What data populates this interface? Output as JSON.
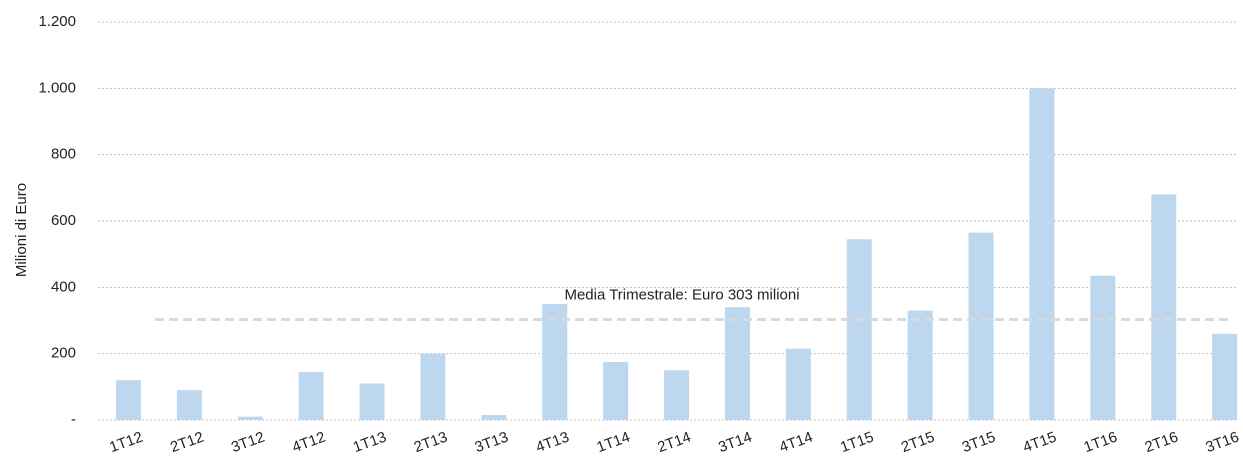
{
  "chart_data": {
    "type": "bar",
    "y_label": "Milioni di Euro",
    "categories": [
      "1T12",
      "2T12",
      "3T12",
      "4T12",
      "1T13",
      "2T13",
      "3T13",
      "4T13",
      "1T14",
      "2T14",
      "3T14",
      "4T14",
      "1T15",
      "2T15",
      "3T15",
      "4T15",
      "1T16",
      "2T16",
      "3T16"
    ],
    "values": [
      120,
      90,
      10,
      145,
      110,
      200,
      15,
      350,
      175,
      150,
      340,
      215,
      545,
      330,
      565,
      1000,
      435,
      680,
      260
    ],
    "color": "#bdd7ee",
    "ylim": [
      0,
      1200
    ],
    "yticks": [
      {
        "value": 0,
        "label": "-"
      },
      200,
      400,
      600,
      800,
      {
        "value": 1000,
        "label": "1.000"
      },
      {
        "value": 1200,
        "label": "1.200"
      }
    ],
    "grid": true,
    "reference_line": {
      "value": 303,
      "label": "Media Trimestrale: Euro 303 milioni",
      "color": "#d9d9d9"
    }
  }
}
